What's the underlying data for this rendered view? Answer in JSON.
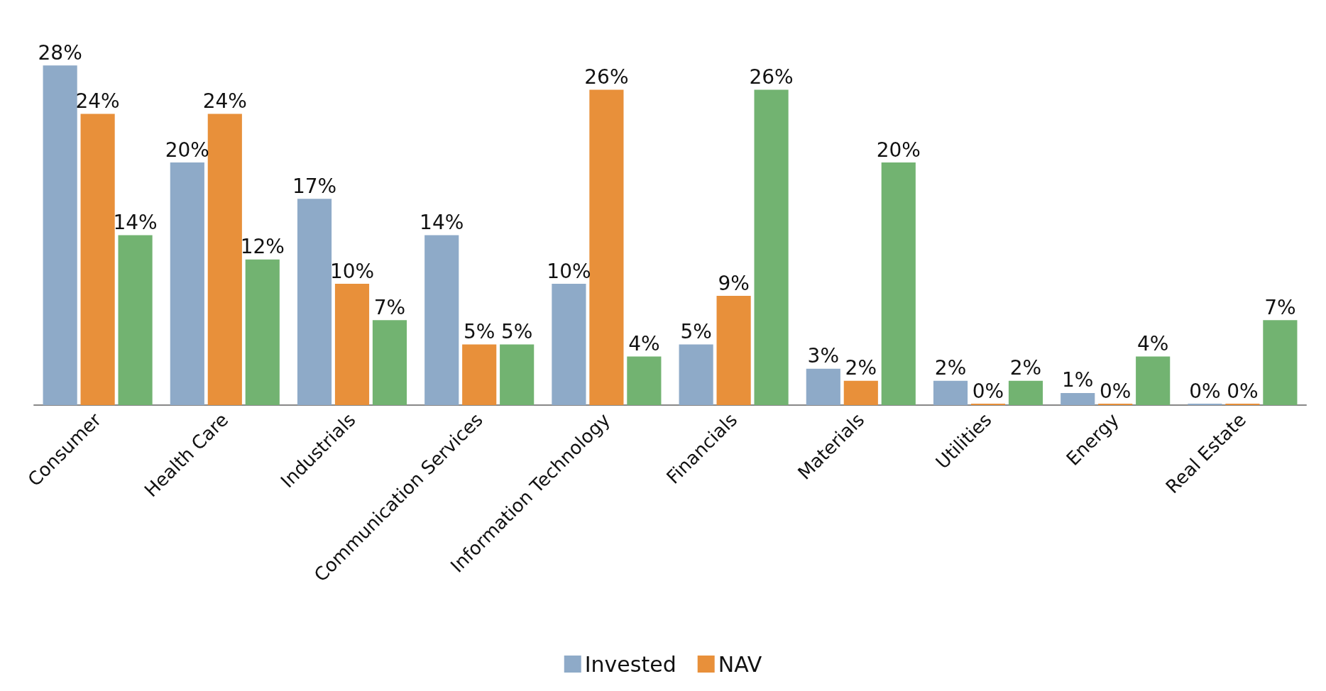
{
  "chart_data": {
    "type": "bar",
    "categories": [
      "Consumer",
      "Health Care",
      "Industrials",
      "Communication Services",
      "Information Technology",
      "Financials",
      "Materials",
      "Utilities",
      "Energy",
      "Real Estate"
    ],
    "series": [
      {
        "name": "Invested",
        "color": "#8eaac8",
        "values": [
          28,
          20,
          17,
          14,
          10,
          5,
          3,
          2,
          1,
          0
        ],
        "value_labels": [
          "28%",
          "20%",
          "17%",
          "14%",
          "10%",
          "5%",
          "3%",
          "2%",
          "1%",
          "0%"
        ]
      },
      {
        "name": "NAV",
        "color": "#e8903a",
        "values": [
          24,
          24,
          10,
          5,
          26,
          9,
          2,
          0,
          0,
          0
        ],
        "value_labels": [
          "24%",
          "24%",
          "10%",
          "5%",
          "26%",
          "9%",
          "2%",
          "0%",
          "0%",
          "0%"
        ]
      },
      {
        "color": "#72b371",
        "values": [
          14,
          12,
          7,
          5,
          4,
          26,
          20,
          2,
          4,
          7
        ],
        "value_labels": [
          "14%",
          "12%",
          "7%",
          "5%",
          "4%",
          "26%",
          "20%",
          "2%",
          "4%",
          "7%"
        ]
      }
    ],
    "legend": "bottom",
    "tick_labels": "x"
  }
}
